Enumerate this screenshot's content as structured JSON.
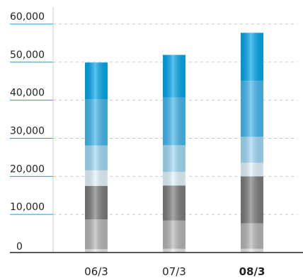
{
  "chart_data": {
    "type": "bar",
    "stacked": true,
    "categories": [
      "06/3",
      "07/3",
      "08/3"
    ],
    "highlight_category": "08/3",
    "ylim": [
      0,
      60000
    ],
    "yticks": [
      "0",
      "10,000",
      "20,000",
      "30,000",
      "40,000",
      "50,000",
      "60,000"
    ],
    "grid": "horizontal dashed",
    "series": [
      {
        "color": "#e6e6e6",
        "values": [
          900,
          1000,
          1000
        ]
      },
      {
        "color": "#b4b4b4",
        "values": [
          7800,
          7400,
          6700
        ]
      },
      {
        "color": "#7a7a7a",
        "values": [
          8800,
          9200,
          12300
        ]
      },
      {
        "color": "#e2f3fc",
        "values": [
          4100,
          3600,
          3600
        ]
      },
      {
        "color": "#9ed8f5",
        "values": [
          6500,
          7000,
          6800
        ]
      },
      {
        "color": "#41b6ec",
        "values": [
          12200,
          12500,
          14700
        ]
      },
      {
        "color": "#00a5e8",
        "values": [
          9600,
          11200,
          12600
        ]
      }
    ]
  }
}
